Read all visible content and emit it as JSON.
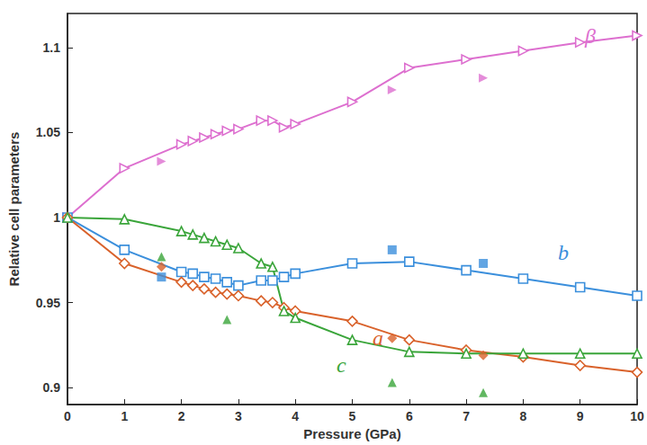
{
  "chart_data": {
    "type": "line",
    "x_label": "Pressure (GPa)",
    "y_label": "Relative cell parameters",
    "xlim": [
      0,
      10
    ],
    "xticks": [
      0,
      1,
      2,
      3,
      4,
      5,
      6,
      7,
      8,
      9,
      10
    ],
    "ylim": [
      0.89,
      1.12
    ],
    "yticks": [
      0.9,
      0.95,
      1,
      1.05,
      1.1
    ],
    "grid": false,
    "series": [
      {
        "name": "β",
        "color": "#dd6fcf",
        "marker": "triangle-right",
        "x": [
          0,
          1,
          2,
          2.2,
          2.4,
          2.6,
          2.8,
          3,
          3.4,
          3.6,
          3.8,
          4,
          5,
          6,
          7,
          8,
          9,
          10
        ],
        "values": [
          1.0,
          1.029,
          1.043,
          1.045,
          1.047,
          1.049,
          1.051,
          1.052,
          1.057,
          1.057,
          1.053,
          1.055,
          1.068,
          1.088,
          1.093,
          1.098,
          1.103,
          1.107
        ],
        "filled_x": [
          1.65,
          5.7,
          7.3
        ],
        "filled_values": [
          1.033,
          1.075,
          1.082
        ]
      },
      {
        "name": "b",
        "color": "#3b8fdc",
        "marker": "square",
        "x": [
          0,
          1,
          2,
          2.2,
          2.4,
          2.6,
          2.8,
          3,
          3.4,
          3.6,
          3.8,
          4,
          5,
          6,
          7,
          8,
          9,
          10
        ],
        "values": [
          1.0,
          0.981,
          0.968,
          0.967,
          0.965,
          0.964,
          0.962,
          0.96,
          0.963,
          0.963,
          0.965,
          0.967,
          0.973,
          0.974,
          0.969,
          0.964,
          0.959,
          0.954
        ],
        "filled_x": [
          1.65,
          5.7,
          7.3
        ],
        "filled_values": [
          0.965,
          0.981,
          0.973
        ]
      },
      {
        "name": "a",
        "color": "#d9622b",
        "marker": "diamond",
        "x": [
          0,
          1,
          2,
          2.2,
          2.4,
          2.6,
          2.8,
          3,
          3.4,
          3.6,
          3.8,
          4,
          5,
          6,
          7,
          8,
          9,
          10
        ],
        "values": [
          1.0,
          0.973,
          0.962,
          0.96,
          0.958,
          0.956,
          0.955,
          0.954,
          0.951,
          0.95,
          0.947,
          0.945,
          0.939,
          0.928,
          0.922,
          0.918,
          0.913,
          0.909
        ],
        "filled_x": [
          1.65,
          5.7,
          7.3
        ],
        "filled_values": [
          0.971,
          0.929,
          0.919
        ]
      },
      {
        "name": "c",
        "color": "#3aa53a",
        "marker": "triangle",
        "x": [
          0,
          1,
          2,
          2.2,
          2.4,
          2.6,
          2.8,
          3,
          3.4,
          3.6,
          3.8,
          4,
          5,
          6,
          7,
          8,
          9,
          10
        ],
        "values": [
          1.0,
          0.999,
          0.992,
          0.99,
          0.988,
          0.986,
          0.984,
          0.982,
          0.973,
          0.971,
          0.945,
          0.941,
          0.928,
          0.921,
          0.92,
          0.92,
          0.92,
          0.92
        ],
        "filled_x": [
          1.65,
          2.8,
          5.7,
          7.3
        ],
        "filled_values": [
          0.977,
          0.94,
          0.903,
          0.897
        ]
      }
    ]
  }
}
